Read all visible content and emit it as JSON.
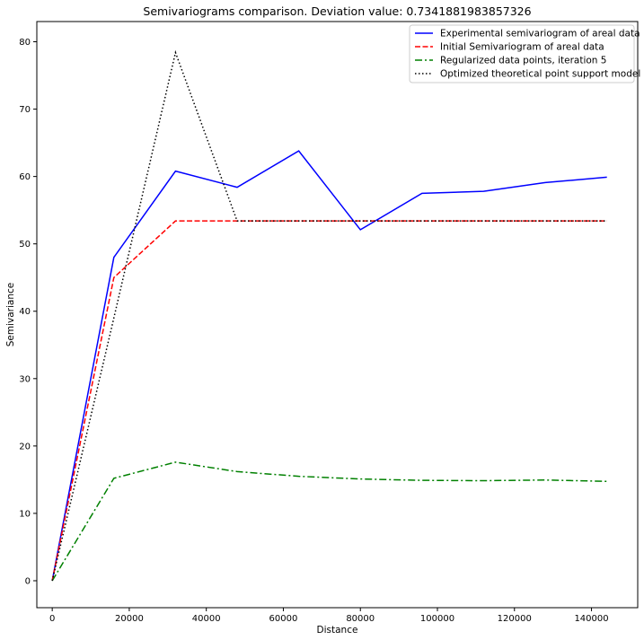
{
  "chart_data": {
    "type": "line",
    "title": "Semivariograms comparison. Deviation value: 0.7341881983857326",
    "xlabel": "Distance",
    "ylabel": "Semivariance",
    "xlim": [
      -4000,
      152000
    ],
    "ylim": [
      -4,
      83
    ],
    "xticks": [
      0,
      20000,
      40000,
      60000,
      80000,
      100000,
      120000,
      140000
    ],
    "yticks": [
      0,
      10,
      20,
      30,
      40,
      50,
      60,
      70,
      80
    ],
    "grid": false,
    "legend_position": "top-right",
    "series": [
      {
        "name": "Experimental semivariogram of areal data",
        "color": "#0000ff",
        "linestyle": "solid",
        "x": [
          0,
          16000,
          32000,
          48000,
          64000,
          80000,
          96000,
          112000,
          128000,
          144000
        ],
        "y": [
          0,
          48.0,
          60.8,
          58.4,
          63.8,
          52.1,
          57.5,
          57.8,
          59.1,
          59.9
        ]
      },
      {
        "name": "Initial Semivariogram of areal data",
        "color": "#ff0000",
        "linestyle": "dashed",
        "x": [
          0,
          16000,
          32000,
          48000,
          64000,
          80000,
          96000,
          112000,
          128000,
          144000
        ],
        "y": [
          0,
          45.0,
          53.4,
          53.4,
          53.4,
          53.4,
          53.4,
          53.4,
          53.4,
          53.4
        ]
      },
      {
        "name": "Regularized data points, iteration 5",
        "color": "#008000",
        "linestyle": "dashdot",
        "x": [
          0,
          16000,
          32000,
          48000,
          64000,
          80000,
          96000,
          112000,
          128000,
          144000
        ],
        "y": [
          0,
          15.2,
          17.6,
          16.2,
          15.5,
          15.1,
          14.9,
          14.85,
          14.95,
          14.75
        ]
      },
      {
        "name": "Optimized theoretical point support model",
        "color": "#000000",
        "linestyle": "dotted",
        "x": [
          0,
          16000,
          32000,
          48000,
          64000,
          80000,
          96000,
          112000,
          128000,
          144000
        ],
        "y": [
          0,
          39.0,
          78.4,
          53.4,
          53.4,
          53.4,
          53.4,
          53.4,
          53.4,
          53.4
        ]
      }
    ]
  }
}
